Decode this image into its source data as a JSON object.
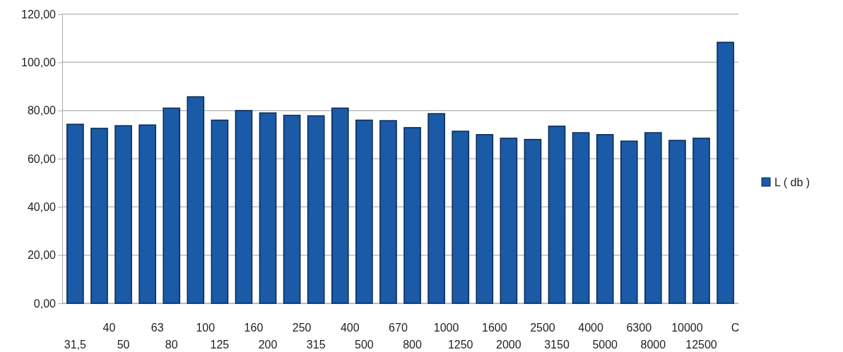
{
  "chart_data": {
    "type": "bar",
    "categories": [
      "31,5",
      "40",
      "50",
      "63",
      "80",
      "100",
      "125",
      "160",
      "200",
      "250",
      "315",
      "400",
      "500",
      "670",
      "800",
      "1000",
      "1250",
      "1600",
      "2000",
      "2500",
      "3150",
      "4000",
      "5000",
      "6300",
      "8000",
      "10000",
      "12500",
      "C"
    ],
    "series": [
      {
        "name": "L ( db )",
        "color": "#1a5aa6",
        "values": [
          74.3,
          72.6,
          73.7,
          74,
          81,
          85.7,
          76,
          80,
          79,
          78,
          77.8,
          81,
          76,
          75.8,
          72.9,
          78.7,
          71.4,
          70,
          68.5,
          68,
          73.5,
          70.8,
          70,
          67.3,
          70.8,
          67.6,
          68.5,
          108.3
        ]
      }
    ],
    "ylim": [
      0,
      120
    ],
    "yticks": [
      {
        "value": 0,
        "label": "0,00"
      },
      {
        "value": 20,
        "label": "20,00"
      },
      {
        "value": 40,
        "label": "40,00"
      },
      {
        "value": 60,
        "label": "60,00"
      },
      {
        "value": 80,
        "label": "80,00"
      },
      {
        "value": 100,
        "label": "100,00"
      },
      {
        "value": 120,
        "label": "120,00"
      }
    ],
    "grid": "y",
    "legend": "right"
  }
}
